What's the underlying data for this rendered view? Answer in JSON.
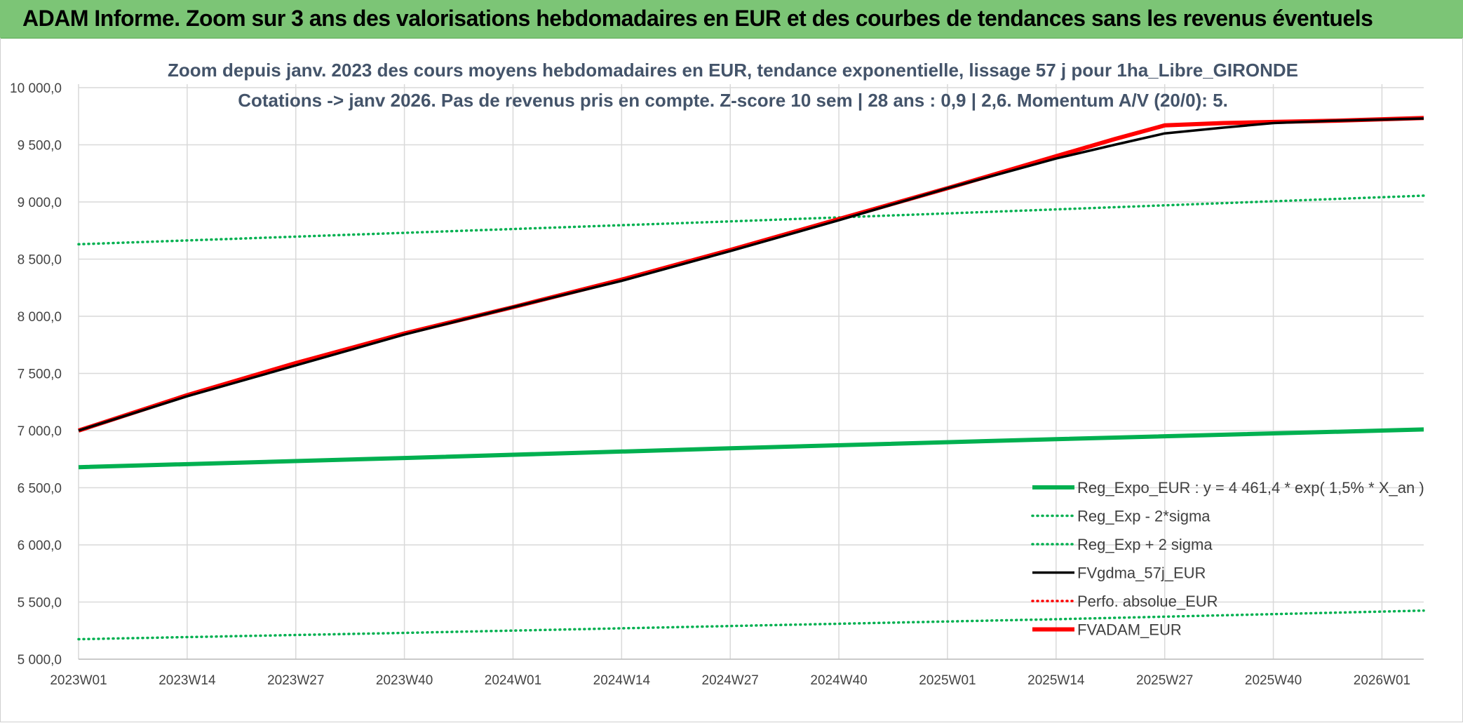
{
  "banner": {
    "title": "ADAM Informe. Zoom sur 3 ans des valorisations hebdomadaires en EUR et des courbes de tendances sans les revenus éventuels"
  },
  "colors": {
    "banner": "#7cc576",
    "reg_green": "#00b050",
    "fvadam_red": "#ff0000",
    "fvgdma_black": "#000000",
    "perfo_red": "#ff0000",
    "grid": "#d9d9d9",
    "subtitle": "#44546a"
  },
  "chart_data": {
    "type": "line",
    "title_lines": [
      "Zoom depuis janv. 2023 des cours moyens hebdomadaires en EUR, tendance exponentielle, lissage 57 j pour 1ha_Libre_GIRONDE",
      "Cotations -> janv 2026. Pas de revenus pris en compte. Z-score 10 sem | 28 ans : 0,9 | 2,6. Momentum A/V (20/0): 5."
    ],
    "ylim": [
      5000,
      10000
    ],
    "y_ticks": [
      "5 000,0",
      "5 500,0",
      "6 000,0",
      "6 500,0",
      "7 000,0",
      "7 500,0",
      "8 000,0",
      "8 500,0",
      "9 000,0",
      "9 500,0",
      "10 000,0"
    ],
    "x_ticks": [
      "2023W01",
      "2023W14",
      "2023W27",
      "2023W40",
      "2024W01",
      "2024W14",
      "2024W27",
      "2024W40",
      "2025W01",
      "2025W14",
      "2025W27",
      "2025W40",
      "2026W01"
    ],
    "x_range_weeks": [
      0,
      161
    ],
    "grid": true,
    "legend_position": "bottom-right",
    "series": [
      {
        "name": "Reg_Expo_EUR : y = 4 461,4 * exp( 1,5% *  X_an )",
        "style": "thick-solid",
        "color": "#00b050",
        "points": [
          [
            0,
            6680
          ],
          [
            39,
            6760
          ],
          [
            78,
            6845
          ],
          [
            117,
            6925
          ],
          [
            161,
            7010
          ]
        ]
      },
      {
        "name": "Reg_Exp - 2*sigma",
        "style": "dotted",
        "color": "#00b050",
        "points": [
          [
            0,
            5175
          ],
          [
            39,
            5230
          ],
          [
            78,
            5290
          ],
          [
            117,
            5350
          ],
          [
            161,
            5425
          ]
        ]
      },
      {
        "name": "Reg_Exp + 2 sigma",
        "style": "dotted",
        "color": "#00b050",
        "points": [
          [
            0,
            8630
          ],
          [
            39,
            8730
          ],
          [
            78,
            8830
          ],
          [
            117,
            8935
          ],
          [
            161,
            9055
          ]
        ]
      },
      {
        "name": "FVgdma_57j_EUR",
        "style": "solid",
        "color": "#000000",
        "points": [
          [
            0,
            7000
          ],
          [
            13,
            7300
          ],
          [
            26,
            7570
          ],
          [
            39,
            7840
          ],
          [
            52,
            8080
          ],
          [
            65,
            8310
          ],
          [
            78,
            8570
          ],
          [
            91,
            8840
          ],
          [
            104,
            9120
          ],
          [
            117,
            9380
          ],
          [
            124,
            9500
          ],
          [
            130,
            9600
          ],
          [
            137,
            9650
          ],
          [
            143,
            9690
          ],
          [
            150,
            9710
          ],
          [
            161,
            9730
          ]
        ]
      },
      {
        "name": "Perfo. absolue_EUR",
        "style": "dotted",
        "color": "#ff0000",
        "points": []
      },
      {
        "name": "FVADAM_EUR",
        "style": "thick-solid",
        "color": "#ff0000",
        "points": [
          [
            0,
            7000
          ],
          [
            13,
            7310
          ],
          [
            26,
            7590
          ],
          [
            39,
            7850
          ],
          [
            52,
            8080
          ],
          [
            65,
            8320
          ],
          [
            78,
            8580
          ],
          [
            91,
            8850
          ],
          [
            104,
            9120
          ],
          [
            117,
            9400
          ],
          [
            124,
            9550
          ],
          [
            130,
            9670
          ],
          [
            137,
            9690
          ],
          [
            143,
            9700
          ],
          [
            150,
            9710
          ],
          [
            161,
            9735
          ]
        ]
      }
    ]
  }
}
